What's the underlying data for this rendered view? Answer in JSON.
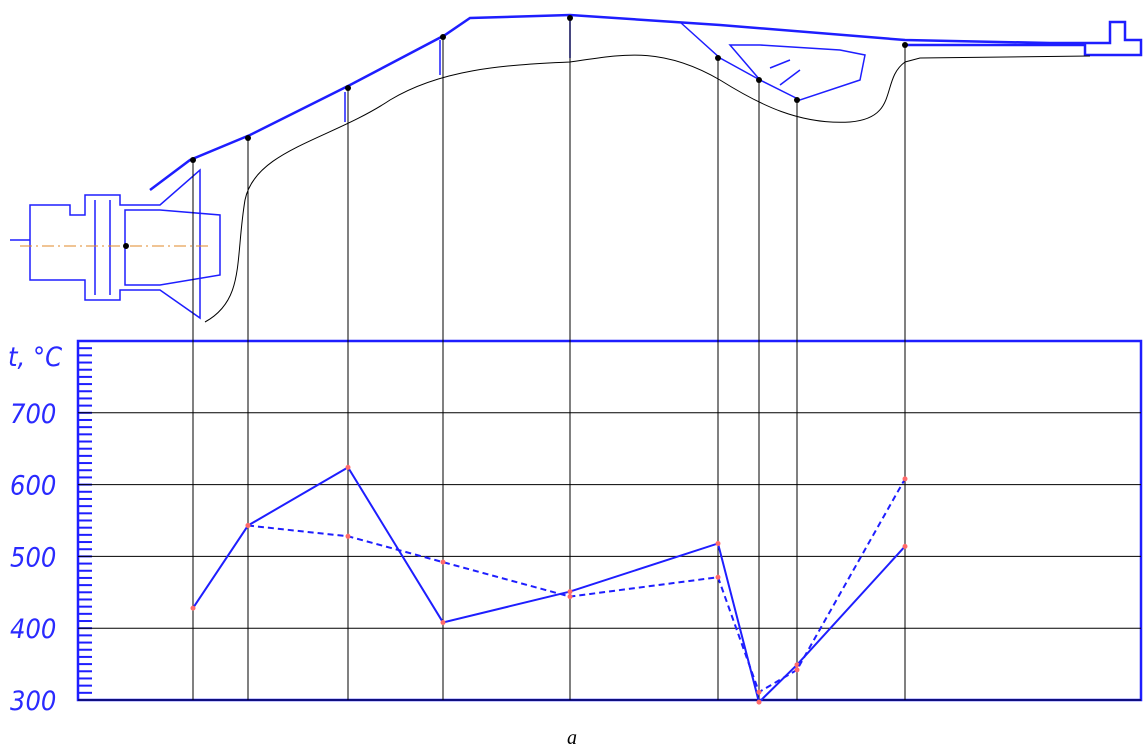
{
  "chart_data": {
    "type": "line",
    "y_label": "t, °C",
    "caption": "a",
    "categories": [
      null,
      null,
      null,
      null,
      null,
      null,
      null,
      null,
      null
    ],
    "series": [
      {
        "name": null,
        "color": "#1e1eff",
        "dash": false,
        "values": [
          428,
          543,
          624,
          408,
          451,
          518,
          297,
          349,
          514
        ]
      },
      {
        "name": null,
        "color": "#1e1eff",
        "dash": true,
        "values": [
          null,
          543,
          528,
          492,
          444,
          471,
          311,
          342,
          608
        ]
      }
    ],
    "marker_color": "#ff6a6a",
    "ylim": [
      300,
      800
    ],
    "yticks": [
      300,
      400,
      500,
      600,
      700
    ],
    "grid": true
  }
}
